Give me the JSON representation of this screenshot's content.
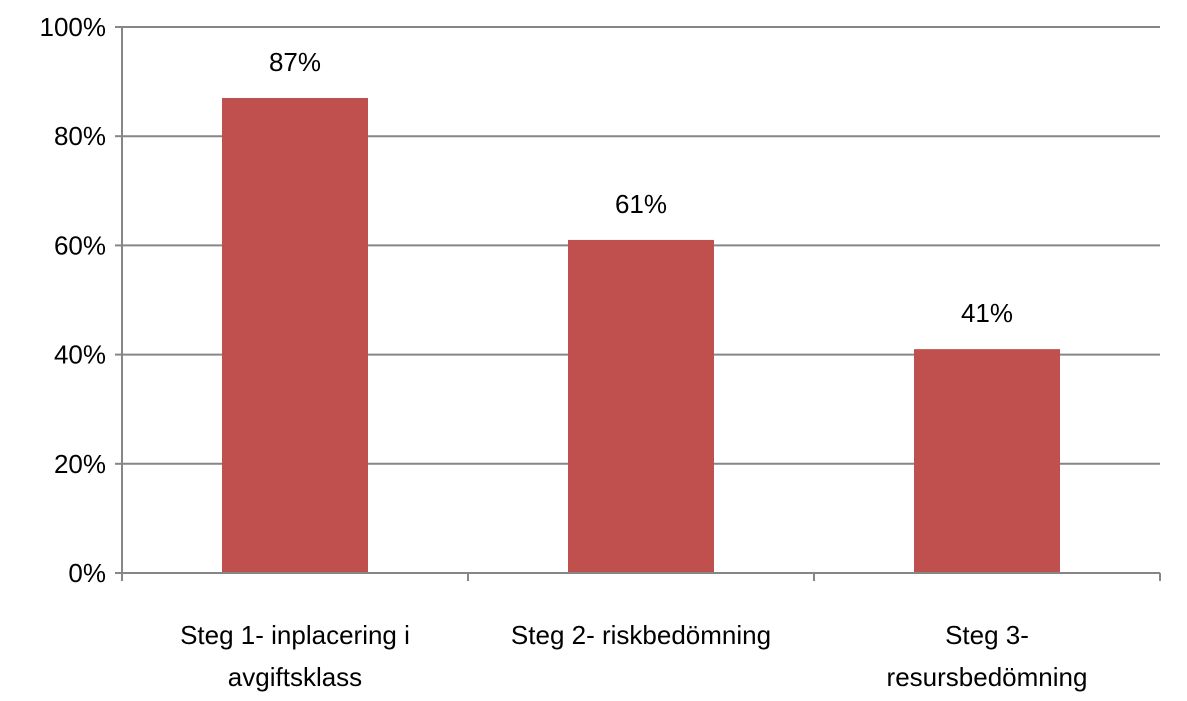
{
  "chart_data": {
    "type": "bar",
    "categories": [
      [
        "Steg 1- inplacering i",
        "avgiftsklass"
      ],
      [
        "Steg 2- riskbedömning"
      ],
      [
        "Steg 3-",
        "resursbedömning"
      ]
    ],
    "values": [
      87,
      61,
      41
    ],
    "data_labels": [
      "87%",
      "61%",
      "41%"
    ],
    "ylim": [
      0,
      100
    ],
    "y_ticks": [
      0,
      20,
      40,
      60,
      80,
      100
    ],
    "y_tick_labels": [
      "0%",
      "20%",
      "40%",
      "60%",
      "80%",
      "100%"
    ],
    "grid": true,
    "bar_color": "#c0504d",
    "grid_color": "#868686",
    "title": "",
    "xlabel": "",
    "ylabel": ""
  }
}
